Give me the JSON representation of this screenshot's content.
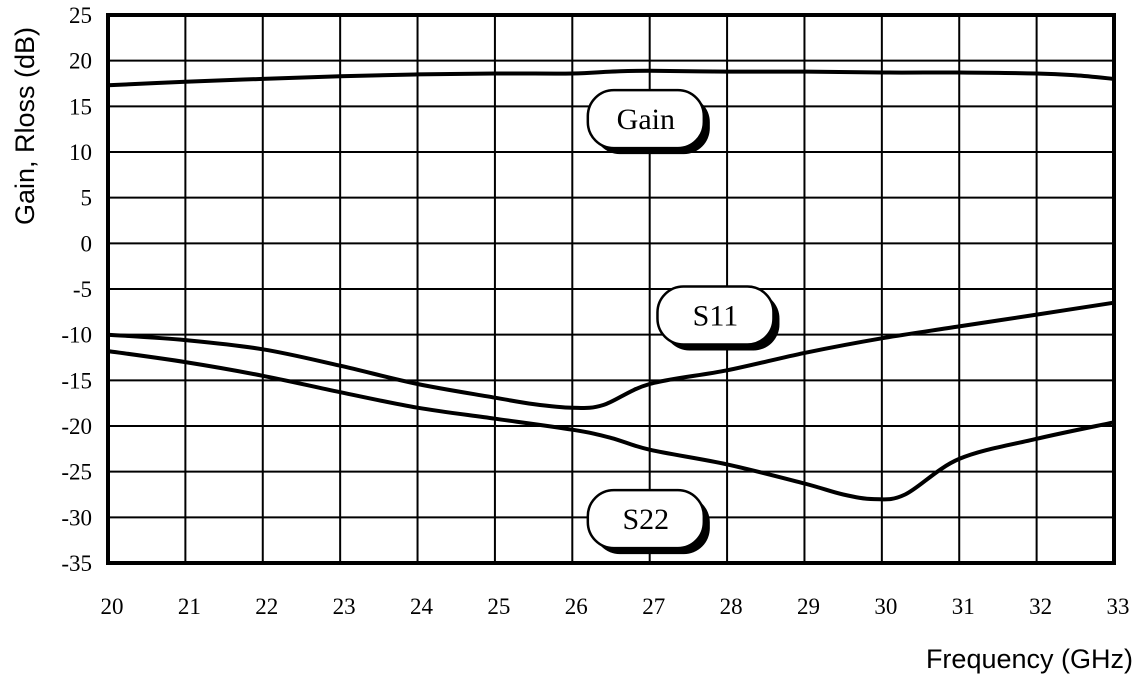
{
  "chart_data": {
    "type": "line",
    "xlabel": "Frequency (GHz)",
    "ylabel": "Gain, Rloss (dB)",
    "xlim": [
      20,
      33
    ],
    "ylim": [
      -35,
      25
    ],
    "xticks": [
      20,
      21,
      22,
      23,
      24,
      25,
      26,
      27,
      28,
      29,
      30,
      31,
      32,
      33
    ],
    "yticks": [
      -35,
      -30,
      -25,
      -20,
      -15,
      -10,
      -5,
      0,
      5,
      10,
      15,
      20,
      25
    ],
    "grid": true,
    "series": [
      {
        "name": "Gain",
        "x": [
          20,
          21,
          22,
          23,
          24,
          25,
          26,
          26.5,
          27,
          28,
          29,
          30,
          31,
          32,
          32.5,
          33
        ],
        "y": [
          17.3,
          17.7,
          18.0,
          18.3,
          18.5,
          18.6,
          18.6,
          18.8,
          18.9,
          18.8,
          18.8,
          18.7,
          18.7,
          18.6,
          18.4,
          18.0
        ]
      },
      {
        "name": "S11",
        "x": [
          20,
          21,
          22,
          23,
          24,
          25,
          25.5,
          26,
          26.4,
          27,
          28,
          29,
          30,
          31,
          32,
          33
        ],
        "y": [
          -10.0,
          -10.6,
          -11.6,
          -13.4,
          -15.4,
          -16.9,
          -17.6,
          -18.0,
          -17.7,
          -15.4,
          -13.9,
          -12.0,
          -10.4,
          -9.1,
          -7.8,
          -6.5
        ]
      },
      {
        "name": "S22",
        "x": [
          20,
          21,
          22,
          23,
          24,
          25,
          26,
          26.5,
          27,
          28,
          29,
          29.5,
          29.9,
          30.3,
          31,
          32,
          33
        ],
        "y": [
          -11.8,
          -13.0,
          -14.5,
          -16.3,
          -18.0,
          -19.2,
          -20.4,
          -21.3,
          -22.6,
          -24.2,
          -26.3,
          -27.5,
          -28.0,
          -27.5,
          -23.6,
          -21.4,
          -19.6
        ]
      }
    ],
    "annotations": [
      {
        "text": "Gain",
        "x": 26.95,
        "y": 13.6
      },
      {
        "text": "S11",
        "x": 27.85,
        "y": -7.9
      },
      {
        "text": "S22",
        "x": 26.95,
        "y": -30.2
      }
    ]
  }
}
